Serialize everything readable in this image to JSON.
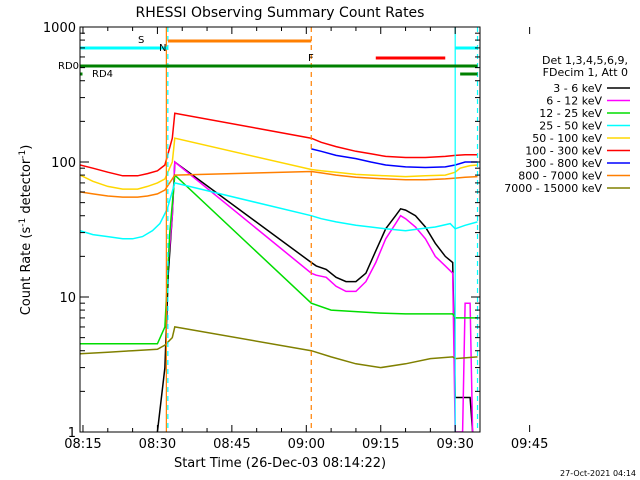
{
  "chart_data": {
    "type": "line",
    "title": "RHESSI Observing Summary Count Rates",
    "xlabel": "Start Time (26-Dec-03 08:14:22)",
    "ylabel_parts": [
      "Count Rate (s",
      "-1",
      " detector",
      "-1",
      ")"
    ],
    "yscale": "log",
    "ylim": [
      1,
      1000
    ],
    "xlim_min": [
      14.4,
      95
    ],
    "x_ticks": [
      {
        "t": 15,
        "label": "08:15"
      },
      {
        "t": 30,
        "label": "08:30"
      },
      {
        "t": 45,
        "label": "08:45"
      },
      {
        "t": 60,
        "label": "09:00"
      },
      {
        "t": 75,
        "label": "09:15"
      },
      {
        "t": 90,
        "label": "09:30"
      },
      {
        "t": 105,
        "label": "09:45"
      }
    ],
    "y_ticks": [
      {
        "v": 1,
        "label": "1"
      },
      {
        "v": 10,
        "label": "10"
      },
      {
        "v": 100,
        "label": "100"
      },
      {
        "v": 1000,
        "label": "1000"
      }
    ],
    "legend_title_lines": [
      "Det 1,3,4,5,6,9,",
      "FDecim 1, Att 0"
    ],
    "series": [
      {
        "name": "3 - 6 keV",
        "color": "#000000",
        "points": [
          [
            30,
            1
          ],
          [
            31.5,
            3
          ],
          [
            32.2,
            15
          ],
          [
            33,
            40
          ],
          [
            33.5,
            100
          ],
          [
            61,
            18
          ],
          [
            62,
            17
          ],
          [
            64,
            16
          ],
          [
            66,
            14
          ],
          [
            68,
            13
          ],
          [
            70,
            13
          ],
          [
            72,
            15
          ],
          [
            74,
            22
          ],
          [
            76,
            32
          ],
          [
            78,
            40
          ],
          [
            79,
            45
          ],
          [
            80,
            44
          ],
          [
            82,
            40
          ],
          [
            84,
            33
          ],
          [
            86,
            25
          ],
          [
            88,
            20
          ],
          [
            89.5,
            18
          ],
          [
            90,
            1.8
          ],
          [
            92,
            1.8
          ],
          [
            93,
            1.8
          ],
          [
            93.5,
            1
          ]
        ]
      },
      {
        "name": "6 - 12 keV",
        "color": "#ff00ff",
        "points": [
          [
            32,
            15
          ],
          [
            33,
            40
          ],
          [
            33.5,
            100
          ],
          [
            61,
            15
          ],
          [
            62,
            14.5
          ],
          [
            64,
            14
          ],
          [
            66,
            12
          ],
          [
            68,
            11
          ],
          [
            70,
            11
          ],
          [
            72,
            13
          ],
          [
            74,
            18
          ],
          [
            76,
            27
          ],
          [
            78,
            35
          ],
          [
            79,
            40
          ],
          [
            80,
            38
          ],
          [
            82,
            33
          ],
          [
            84,
            27
          ],
          [
            86,
            20
          ],
          [
            88,
            17
          ],
          [
            89.5,
            15
          ],
          [
            90,
            1
          ],
          [
            91.5,
            1
          ],
          [
            92,
            9
          ],
          [
            93,
            9
          ],
          [
            93.5,
            1
          ]
        ]
      },
      {
        "name": "12 - 25 keV",
        "color": "#00dd00",
        "points": [
          [
            14.4,
            4.5
          ],
          [
            20,
            4.5
          ],
          [
            25,
            4.5
          ],
          [
            30,
            4.5
          ],
          [
            31.5,
            6
          ],
          [
            32.5,
            30
          ],
          [
            33.5,
            80
          ],
          [
            61,
            9
          ],
          [
            65,
            8
          ],
          [
            70,
            7.8
          ],
          [
            75,
            7.6
          ],
          [
            80,
            7.5
          ],
          [
            85,
            7.5
          ],
          [
            89.5,
            7.5
          ],
          [
            90,
            7
          ],
          [
            93,
            7
          ],
          [
            94.5,
            7
          ]
        ]
      },
      {
        "name": "25 - 50 keV",
        "color": "#00ffff",
        "points": [
          [
            14.4,
            31
          ],
          [
            17,
            29
          ],
          [
            20,
            28
          ],
          [
            23,
            27
          ],
          [
            25,
            27
          ],
          [
            27,
            28
          ],
          [
            29,
            31
          ],
          [
            30.5,
            35
          ],
          [
            32,
            45
          ],
          [
            33.5,
            70
          ],
          [
            61,
            40
          ],
          [
            63,
            38
          ],
          [
            66,
            36
          ],
          [
            70,
            34
          ],
          [
            73,
            33
          ],
          [
            76,
            32
          ],
          [
            80,
            31
          ],
          [
            83,
            32
          ],
          [
            86,
            33
          ],
          [
            89,
            35
          ],
          [
            90,
            32
          ],
          [
            92,
            34
          ],
          [
            94.5,
            36
          ]
        ]
      },
      {
        "name": "50 - 100 keV",
        "color": "#ffd700",
        "points": [
          [
            14.4,
            80
          ],
          [
            17,
            72
          ],
          [
            20,
            66
          ],
          [
            23,
            63
          ],
          [
            26,
            63
          ],
          [
            28,
            66
          ],
          [
            30,
            70
          ],
          [
            31.5,
            75
          ],
          [
            33,
            100
          ],
          [
            33.5,
            150
          ],
          [
            61,
            88
          ],
          [
            63,
            86
          ],
          [
            66,
            84
          ],
          [
            70,
            81
          ],
          [
            73,
            80
          ],
          [
            76,
            79
          ],
          [
            80,
            78
          ],
          [
            84,
            79
          ],
          [
            88,
            80
          ],
          [
            90,
            84
          ],
          [
            91,
            90
          ],
          [
            92,
            92
          ],
          [
            93,
            94
          ],
          [
            94.5,
            95
          ]
        ]
      },
      {
        "name": "100 - 300 keV",
        "color": "#ff0000",
        "points": [
          [
            14.4,
            95
          ],
          [
            17,
            90
          ],
          [
            20,
            84
          ],
          [
            23,
            79
          ],
          [
            26,
            79
          ],
          [
            28,
            82
          ],
          [
            30,
            86
          ],
          [
            31.5,
            95
          ],
          [
            33,
            150
          ],
          [
            33.5,
            230
          ],
          [
            61,
            150
          ],
          [
            63,
            140
          ],
          [
            66,
            130
          ],
          [
            70,
            120
          ],
          [
            73,
            115
          ],
          [
            76,
            110
          ],
          [
            80,
            108
          ],
          [
            84,
            108
          ],
          [
            88,
            110
          ],
          [
            90,
            112
          ],
          [
            92,
            113
          ],
          [
            94.5,
            113
          ]
        ]
      },
      {
        "name": "300 - 800 keV",
        "color": "#0000ff",
        "points": [
          [
            61,
            125
          ],
          [
            63,
            120
          ],
          [
            66,
            112
          ],
          [
            70,
            106
          ],
          [
            73,
            100
          ],
          [
            76,
            95
          ],
          [
            80,
            92
          ],
          [
            84,
            91
          ],
          [
            88,
            92
          ],
          [
            90,
            95
          ],
          [
            92,
            100
          ],
          [
            94.5,
            100
          ]
        ]
      },
      {
        "name": "800 - 7000 keV",
        "color": "#ff7f00",
        "points": [
          [
            14.4,
            60
          ],
          [
            17,
            58
          ],
          [
            20,
            56
          ],
          [
            23,
            55
          ],
          [
            26,
            55
          ],
          [
            28,
            56
          ],
          [
            30,
            58
          ],
          [
            31.5,
            62
          ],
          [
            33,
            75
          ],
          [
            33.5,
            80
          ],
          [
            61,
            85
          ],
          [
            63,
            83
          ],
          [
            66,
            80
          ],
          [
            70,
            77
          ],
          [
            73,
            76
          ],
          [
            76,
            75
          ],
          [
            80,
            74
          ],
          [
            84,
            74
          ],
          [
            88,
            75
          ],
          [
            90,
            76
          ],
          [
            92,
            77
          ],
          [
            94.5,
            78
          ]
        ]
      },
      {
        "name": "7000 - 15000 keV",
        "color": "#808000",
        "points": [
          [
            14.4,
            3.8
          ],
          [
            20,
            3.9
          ],
          [
            25,
            4.0
          ],
          [
            30,
            4.1
          ],
          [
            31.5,
            4.4
          ],
          [
            33,
            5
          ],
          [
            33.5,
            6
          ],
          [
            61,
            4
          ],
          [
            65,
            3.6
          ],
          [
            70,
            3.2
          ],
          [
            75,
            3.0
          ],
          [
            80,
            3.2
          ],
          [
            85,
            3.5
          ],
          [
            89.5,
            3.6
          ],
          [
            90,
            3.5
          ],
          [
            94.5,
            3.6
          ]
        ]
      }
    ],
    "annotations": {
      "S_label": "S",
      "N_label": "N",
      "F_label": "F",
      "RD0_label": "RD0",
      "RD4_label": "RD4"
    },
    "flag_bars": [
      {
        "name": "S",
        "color": "#ff7f00",
        "level": "S",
        "ranges": [
          [
            32.1,
            61
          ]
        ]
      },
      {
        "name": "N",
        "color": "#00ffff",
        "level": "N",
        "ranges": [
          [
            14.4,
            32.1
          ],
          [
            90,
            94.5
          ]
        ]
      },
      {
        "name": "F",
        "color": "#ff0000",
        "level": "F",
        "ranges": [
          [
            74,
            88
          ]
        ]
      },
      {
        "name": "RD0",
        "color": "#008000",
        "level": "RD0",
        "ranges": [
          [
            14.4,
            94.5
          ]
        ]
      },
      {
        "name": "RD4",
        "color": "#008000",
        "level": "RD4",
        "ranges": [
          [
            14.4,
            14.9
          ],
          [
            91,
            94.5
          ]
        ]
      }
    ],
    "vlines": [
      {
        "t": 31.8,
        "color": "#ff7f00",
        "dash": false
      },
      {
        "t": 32.1,
        "color": "#00ffff",
        "dash": true
      },
      {
        "t": 61,
        "color": "#ff7f00",
        "dash": true
      },
      {
        "t": 90,
        "color": "#00ffff",
        "dash": false
      },
      {
        "t": 94.5,
        "color": "#00ffff",
        "dash": true
      }
    ],
    "footer_timestamp": "27-Oct-2021 04:14"
  }
}
